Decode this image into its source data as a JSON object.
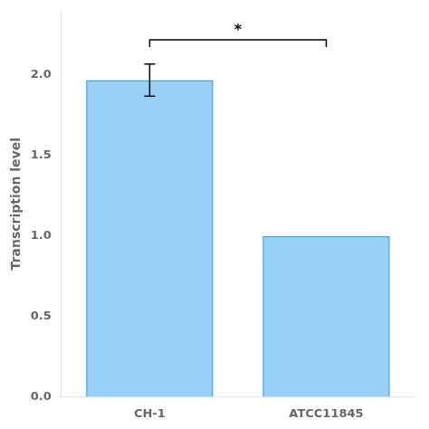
{
  "chart_data": {
    "type": "bar",
    "categories": [
      "CH-1",
      "ATCC11845"
    ],
    "values": [
      1.97,
      1.0
    ],
    "errors": [
      0.1,
      0.0
    ],
    "ylabel": "Transcription level",
    "ylim": [
      0,
      2.4
    ],
    "yticks": [
      {
        "value": 0,
        "label": "0.0"
      },
      0.5,
      {
        "value": 1,
        "label": "1.0"
      },
      1.5,
      {
        "value": 2,
        "label": "2.0"
      }
    ],
    "grid": false,
    "annotations": [
      {
        "text": "*",
        "x1": "CH-1",
        "x2": "ATCC11845",
        "y": 2.22
      }
    ]
  }
}
